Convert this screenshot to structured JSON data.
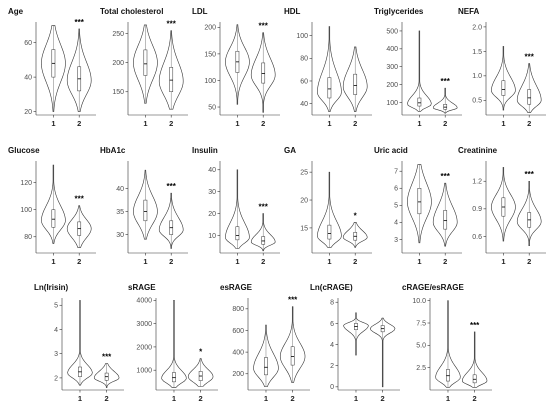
{
  "chart_data": [
    {
      "type": "violin",
      "title": "Age",
      "categories": [
        "1",
        "2"
      ],
      "ylim": [
        18,
        72
      ],
      "yticks": [
        20,
        40,
        60
      ],
      "groups": [
        {
          "name": "1",
          "q1": 40,
          "median": 48,
          "q3": 56,
          "min": 20,
          "max": 70,
          "mode": 48
        },
        {
          "name": "2",
          "q1": 32,
          "median": 39,
          "q3": 46,
          "min": 20,
          "max": 68,
          "mode": 38
        }
      ],
      "significance": "***"
    },
    {
      "type": "violin",
      "title": "Total cholesterol",
      "categories": [
        "1",
        "2"
      ],
      "ylim": [
        110,
        270
      ],
      "yticks": [
        150,
        200,
        250
      ],
      "groups": [
        {
          "name": "1",
          "q1": 178,
          "median": 198,
          "q3": 222,
          "min": 130,
          "max": 265,
          "mode": 200
        },
        {
          "name": "2",
          "q1": 150,
          "median": 170,
          "q3": 192,
          "min": 120,
          "max": 255,
          "mode": 168
        }
      ],
      "significance": "***"
    },
    {
      "type": "violin",
      "title": "LDL",
      "categories": [
        "1",
        "2"
      ],
      "ylim": [
        35,
        210
      ],
      "yticks": [
        50,
        100,
        150,
        200
      ],
      "groups": [
        {
          "name": "1",
          "q1": 115,
          "median": 135,
          "q3": 155,
          "min": 55,
          "max": 205,
          "mode": 135
        },
        {
          "name": "2",
          "q1": 95,
          "median": 113,
          "q3": 133,
          "min": 40,
          "max": 190,
          "mode": 110
        }
      ],
      "significance": "***"
    },
    {
      "type": "violin",
      "title": "HDL",
      "categories": [
        "1",
        "2"
      ],
      "ylim": [
        30,
        112
      ],
      "yticks": [
        40,
        60,
        80,
        100
      ],
      "groups": [
        {
          "name": "1",
          "q1": 45,
          "median": 53,
          "q3": 63,
          "min": 33,
          "max": 108,
          "mode": 50
        },
        {
          "name": "2",
          "q1": 48,
          "median": 56,
          "q3": 66,
          "min": 33,
          "max": 90,
          "mode": 55
        }
      ],
      "significance": ""
    },
    {
      "type": "violin",
      "title": "Triglycerides",
      "categories": [
        "1",
        "2"
      ],
      "ylim": [
        30,
        550
      ],
      "yticks": [
        100,
        200,
        300,
        400,
        500
      ],
      "groups": [
        {
          "name": "1",
          "q1": 80,
          "median": 98,
          "q3": 125,
          "min": 50,
          "max": 500,
          "mode": 90
        },
        {
          "name": "2",
          "q1": 62,
          "median": 74,
          "q3": 90,
          "min": 40,
          "max": 180,
          "mode": 70
        }
      ],
      "significance": "***"
    },
    {
      "type": "violin",
      "title": "NEFA",
      "categories": [
        "1",
        "2"
      ],
      "ylim": [
        0.2,
        2.1
      ],
      "yticks": [
        0.5,
        1.0,
        1.5,
        2.0
      ],
      "groups": [
        {
          "name": "1",
          "q1": 0.6,
          "median": 0.72,
          "q3": 0.9,
          "min": 0.3,
          "max": 1.6,
          "mode": 0.7
        },
        {
          "name": "2",
          "q1": 0.42,
          "median": 0.55,
          "q3": 0.72,
          "min": 0.25,
          "max": 1.25,
          "mode": 0.5
        }
      ],
      "significance": "***"
    },
    {
      "type": "violin",
      "title": "Glucose",
      "categories": [
        "1",
        "2"
      ],
      "ylim": [
        68,
        136
      ],
      "yticks": [
        80,
        100,
        120
      ],
      "groups": [
        {
          "name": "1",
          "q1": 87,
          "median": 93,
          "q3": 100,
          "min": 75,
          "max": 133,
          "mode": 92
        },
        {
          "name": "2",
          "q1": 81,
          "median": 86,
          "q3": 91,
          "min": 72,
          "max": 103,
          "mode": 86
        }
      ],
      "significance": "***"
    },
    {
      "type": "violin",
      "title": "HbA1c",
      "categories": [
        "1",
        "2"
      ],
      "ylim": [
        26,
        46
      ],
      "yticks": [
        30,
        35,
        40
      ],
      "groups": [
        {
          "name": "1",
          "q1": 33,
          "median": 35,
          "q3": 37.5,
          "min": 29,
          "max": 44,
          "mode": 35
        },
        {
          "name": "2",
          "q1": 30,
          "median": 31.5,
          "q3": 33,
          "min": 27,
          "max": 39,
          "mode": 31
        }
      ],
      "significance": "***"
    },
    {
      "type": "violin",
      "title": "Insulin",
      "categories": [
        "1",
        "2"
      ],
      "ylim": [
        2,
        44
      ],
      "yticks": [
        10,
        20,
        30,
        40
      ],
      "groups": [
        {
          "name": "1",
          "q1": 8,
          "median": 10,
          "q3": 14,
          "min": 4,
          "max": 40,
          "mode": 9
        },
        {
          "name": "2",
          "q1": 6,
          "median": 7.5,
          "q3": 9.5,
          "min": 3,
          "max": 20,
          "mode": 7
        }
      ],
      "significance": "***"
    },
    {
      "type": "violin",
      "title": "GA",
      "categories": [
        "1",
        "2"
      ],
      "ylim": [
        10.5,
        27
      ],
      "yticks": [
        15,
        20,
        25
      ],
      "groups": [
        {
          "name": "1",
          "q1": 13,
          "median": 14,
          "q3": 15.5,
          "min": 11.5,
          "max": 25,
          "mode": 13.5
        },
        {
          "name": "2",
          "q1": 12.8,
          "median": 13.5,
          "q3": 14.2,
          "min": 11.5,
          "max": 16,
          "mode": 13.3
        }
      ],
      "significance": "*"
    },
    {
      "type": "violin",
      "title": "Uric acid",
      "categories": [
        "1",
        "2"
      ],
      "ylim": [
        2.2,
        7.6
      ],
      "yticks": [
        3,
        4,
        5,
        6,
        7
      ],
      "groups": [
        {
          "name": "1",
          "q1": 4.5,
          "median": 5.2,
          "q3": 6.0,
          "min": 2.8,
          "max": 7.4,
          "mode": 5.2
        },
        {
          "name": "2",
          "q1": 3.6,
          "median": 4.1,
          "q3": 4.7,
          "min": 2.6,
          "max": 6.3,
          "mode": 4.0
        }
      ],
      "significance": "***"
    },
    {
      "type": "violin",
      "title": "Creatinine",
      "categories": [
        "1",
        "2"
      ],
      "ylim": [
        0.42,
        1.42
      ],
      "yticks": [
        0.6,
        0.9,
        1.2
      ],
      "groups": [
        {
          "name": "1",
          "q1": 0.82,
          "median": 0.92,
          "q3": 1.02,
          "min": 0.55,
          "max": 1.35,
          "mode": 0.92
        },
        {
          "name": "2",
          "q1": 0.7,
          "median": 0.78,
          "q3": 0.86,
          "min": 0.5,
          "max": 1.2,
          "mode": 0.76
        }
      ],
      "significance": "***"
    },
    {
      "type": "violin",
      "title": "Ln(Irisin)",
      "categories": [
        "1",
        "2"
      ],
      "ylim": [
        1.5,
        5.3
      ],
      "yticks": [
        2,
        3,
        4,
        5
      ],
      "groups": [
        {
          "name": "1",
          "q1": 2.05,
          "median": 2.25,
          "q3": 2.45,
          "min": 1.7,
          "max": 5.2,
          "mode": 2.2
        },
        {
          "name": "2",
          "q1": 1.9,
          "median": 2.05,
          "q3": 2.2,
          "min": 1.6,
          "max": 2.6,
          "mode": 2.0
        }
      ],
      "significance": "***"
    },
    {
      "type": "violin",
      "title": "sRAGE",
      "categories": [
        "1",
        "2"
      ],
      "ylim": [
        150,
        4100
      ],
      "yticks": [
        1000,
        2000,
        3000,
        4000
      ],
      "groups": [
        {
          "name": "1",
          "q1": 500,
          "median": 680,
          "q3": 900,
          "min": 250,
          "max": 4000,
          "mode": 650
        },
        {
          "name": "2",
          "q1": 550,
          "median": 750,
          "q3": 950,
          "min": 300,
          "max": 1500,
          "mode": 720
        }
      ],
      "significance": "*"
    },
    {
      "type": "violin",
      "title": "esRAGE",
      "categories": [
        "1",
        "2"
      ],
      "ylim": [
        50,
        900
      ],
      "yticks": [
        200,
        400,
        600,
        800
      ],
      "groups": [
        {
          "name": "1",
          "q1": 190,
          "median": 260,
          "q3": 350,
          "min": 80,
          "max": 650,
          "mode": 250
        },
        {
          "name": "2",
          "q1": 280,
          "median": 360,
          "q3": 450,
          "min": 120,
          "max": 820,
          "mode": 360
        }
      ],
      "significance": "***"
    },
    {
      "type": "violin",
      "title": "Ln(cRAGE)",
      "categories": [
        "1",
        "2"
      ],
      "ylim": [
        -0.3,
        8.4
      ],
      "yticks": [
        0,
        2,
        4,
        6,
        8
      ],
      "groups": [
        {
          "name": "1",
          "q1": 5.4,
          "median": 5.7,
          "q3": 6.0,
          "min": 3.0,
          "max": 7.0,
          "mode": 5.8
        },
        {
          "name": "2",
          "q1": 5.2,
          "median": 5.5,
          "q3": 5.8,
          "min": 0,
          "max": 6.5,
          "mode": 5.5
        }
      ],
      "significance": ""
    },
    {
      "type": "violin",
      "title": "cRAGE/esRAGE",
      "categories": [
        "1",
        "2"
      ],
      "ylim": [
        0,
        10.3
      ],
      "yticks": [
        2.5,
        5.0,
        7.5,
        10.0
      ],
      "groups": [
        {
          "name": "1",
          "q1": 1.0,
          "median": 1.6,
          "q3": 2.3,
          "min": 0.3,
          "max": 10,
          "mode": 1.4
        },
        {
          "name": "2",
          "q1": 0.8,
          "median": 1.2,
          "q3": 1.7,
          "min": 0.3,
          "max": 6.5,
          "mode": 1.0
        }
      ],
      "significance": "***"
    }
  ]
}
